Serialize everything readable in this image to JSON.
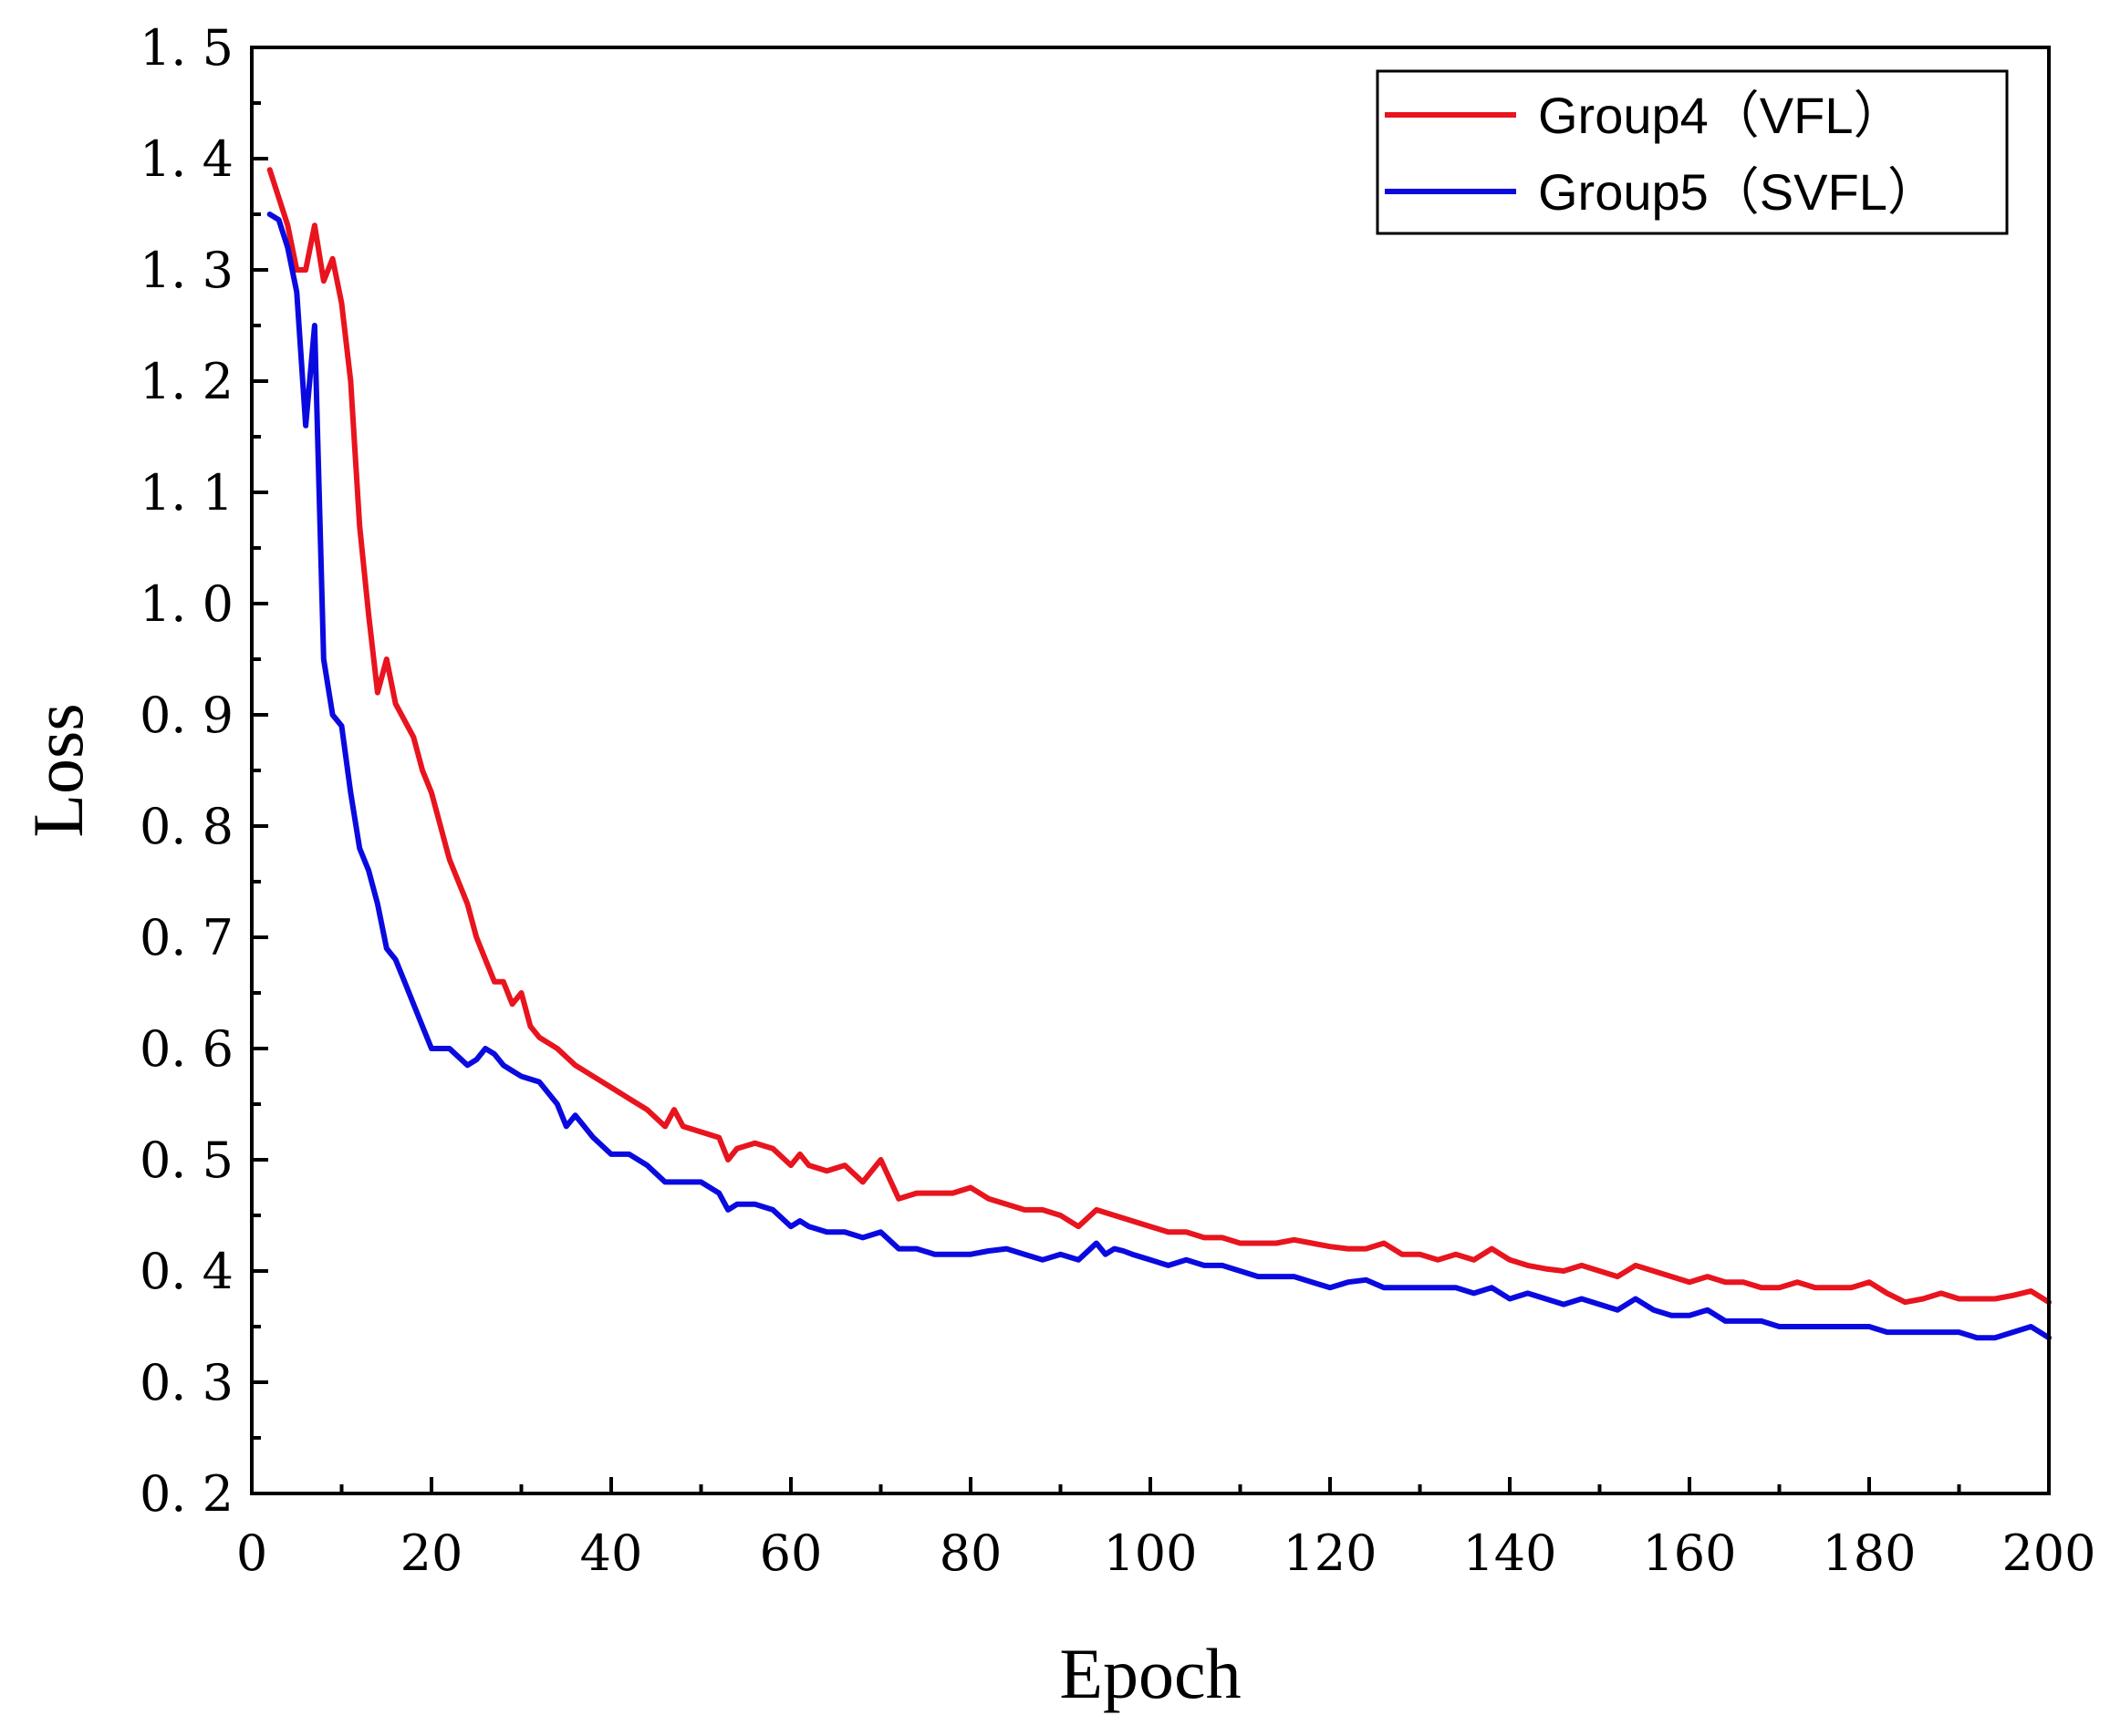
{
  "chart_data": {
    "type": "line",
    "title": "",
    "xlabel": "Epoch",
    "ylabel": "Loss",
    "xlim": [
      0,
      200
    ],
    "ylim": [
      0.2,
      1.5
    ],
    "xticks": [
      0,
      20,
      40,
      60,
      80,
      100,
      120,
      140,
      160,
      180,
      200
    ],
    "xtick_labels": [
      "0",
      "20",
      "40",
      "60",
      "80",
      "100",
      "120",
      "140",
      "160",
      "180",
      "200"
    ],
    "yticks": [
      0.2,
      0.3,
      0.4,
      0.5,
      0.6,
      0.7,
      0.8,
      0.9,
      1.0,
      1.1,
      1.2,
      1.3,
      1.4,
      1.5
    ],
    "ytick_labels": [
      "0. 2",
      "0. 3",
      "0. 4",
      "0. 5",
      "0. 6",
      "0. 7",
      "0. 8",
      "0. 9",
      "1. 0",
      "1. 1",
      "1. 2",
      "1. 3",
      "1. 4",
      "1. 5"
    ],
    "grid": false,
    "legend_position": "top-right",
    "series": [
      {
        "name": "Group4（VFL）",
        "color": "#e8141e",
        "x": [
          2,
          4,
          5,
          6,
          7,
          8,
          9,
          10,
          11,
          12,
          13,
          14,
          15,
          16,
          18,
          19,
          20,
          22,
          24,
          25,
          26,
          27,
          28,
          29,
          30,
          31,
          32,
          34,
          36,
          38,
          40,
          42,
          44,
          46,
          47,
          48,
          50,
          52,
          53,
          54,
          56,
          58,
          60,
          61,
          62,
          64,
          66,
          68,
          70,
          72,
          74,
          76,
          78,
          80,
          82,
          84,
          86,
          88,
          90,
          92,
          94,
          96,
          98,
          100,
          102,
          104,
          106,
          108,
          110,
          112,
          114,
          116,
          118,
          120,
          122,
          124,
          126,
          128,
          130,
          132,
          134,
          136,
          138,
          140,
          142,
          144,
          146,
          148,
          150,
          152,
          154,
          156,
          158,
          160,
          162,
          164,
          166,
          168,
          170,
          172,
          174,
          176,
          178,
          180,
          182,
          184,
          186,
          188,
          190,
          192,
          194,
          196,
          198,
          200
        ],
        "values": [
          1.39,
          1.34,
          1.3,
          1.3,
          1.34,
          1.29,
          1.31,
          1.27,
          1.2,
          1.07,
          0.99,
          0.92,
          0.95,
          0.91,
          0.88,
          0.85,
          0.83,
          0.77,
          0.73,
          0.7,
          0.68,
          0.66,
          0.66,
          0.64,
          0.65,
          0.62,
          0.61,
          0.6,
          0.585,
          0.575,
          0.565,
          0.555,
          0.545,
          0.53,
          0.545,
          0.53,
          0.525,
          0.52,
          0.5,
          0.51,
          0.515,
          0.51,
          0.495,
          0.505,
          0.495,
          0.49,
          0.495,
          0.48,
          0.5,
          0.465,
          0.47,
          0.47,
          0.47,
          0.475,
          0.465,
          0.46,
          0.455,
          0.455,
          0.45,
          0.44,
          0.455,
          0.45,
          0.445,
          0.44,
          0.435,
          0.435,
          0.43,
          0.43,
          0.425,
          0.425,
          0.425,
          0.428,
          0.425,
          0.422,
          0.42,
          0.42,
          0.425,
          0.415,
          0.415,
          0.41,
          0.415,
          0.41,
          0.42,
          0.41,
          0.405,
          0.402,
          0.4,
          0.405,
          0.4,
          0.395,
          0.405,
          0.4,
          0.395,
          0.39,
          0.395,
          0.39,
          0.39,
          0.385,
          0.385,
          0.39,
          0.385,
          0.385,
          0.385,
          0.39,
          0.38,
          0.372,
          0.375,
          0.38,
          0.375,
          0.375,
          0.375,
          0.378,
          0.382,
          0.372
        ]
      },
      {
        "name": "Group5（SVFL）",
        "color": "#0a0ae0",
        "x": [
          2,
          3,
          4,
          5,
          6,
          7,
          8,
          9,
          10,
          11,
          12,
          13,
          14,
          15,
          16,
          17,
          18,
          19,
          20,
          21,
          22,
          24,
          25,
          26,
          27,
          28,
          29,
          30,
          32,
          34,
          35,
          36,
          38,
          40,
          42,
          44,
          46,
          48,
          50,
          52,
          53,
          54,
          56,
          58,
          60,
          61,
          62,
          64,
          66,
          68,
          70,
          72,
          74,
          76,
          78,
          80,
          82,
          84,
          86,
          88,
          90,
          92,
          94,
          95,
          96,
          97,
          98,
          100,
          102,
          104,
          106,
          108,
          110,
          112,
          114,
          116,
          118,
          120,
          122,
          124,
          126,
          128,
          130,
          132,
          134,
          136,
          138,
          140,
          142,
          144,
          146,
          148,
          150,
          152,
          154,
          156,
          158,
          160,
          162,
          164,
          166,
          168,
          170,
          172,
          174,
          176,
          178,
          180,
          182,
          184,
          186,
          188,
          190,
          192,
          194,
          196,
          198,
          200
        ],
        "values": [
          1.35,
          1.345,
          1.32,
          1.28,
          1.16,
          1.25,
          0.95,
          0.9,
          0.89,
          0.83,
          0.78,
          0.76,
          0.73,
          0.69,
          0.68,
          0.66,
          0.64,
          0.62,
          0.6,
          0.6,
          0.6,
          0.585,
          0.59,
          0.6,
          0.595,
          0.585,
          0.58,
          0.575,
          0.57,
          0.55,
          0.53,
          0.54,
          0.52,
          0.505,
          0.505,
          0.495,
          0.48,
          0.48,
          0.48,
          0.47,
          0.455,
          0.46,
          0.46,
          0.455,
          0.44,
          0.445,
          0.44,
          0.435,
          0.435,
          0.43,
          0.435,
          0.42,
          0.42,
          0.415,
          0.415,
          0.415,
          0.418,
          0.42,
          0.415,
          0.41,
          0.415,
          0.41,
          0.425,
          0.415,
          0.42,
          0.418,
          0.415,
          0.41,
          0.405,
          0.41,
          0.405,
          0.405,
          0.4,
          0.395,
          0.395,
          0.395,
          0.39,
          0.385,
          0.39,
          0.392,
          0.385,
          0.385,
          0.385,
          0.385,
          0.385,
          0.38,
          0.385,
          0.375,
          0.38,
          0.375,
          0.37,
          0.375,
          0.37,
          0.365,
          0.375,
          0.365,
          0.36,
          0.36,
          0.365,
          0.355,
          0.355,
          0.355,
          0.35,
          0.35,
          0.35,
          0.35,
          0.35,
          0.35,
          0.345,
          0.345,
          0.345,
          0.345,
          0.345,
          0.34,
          0.34,
          0.345,
          0.35,
          0.34
        ]
      }
    ]
  }
}
